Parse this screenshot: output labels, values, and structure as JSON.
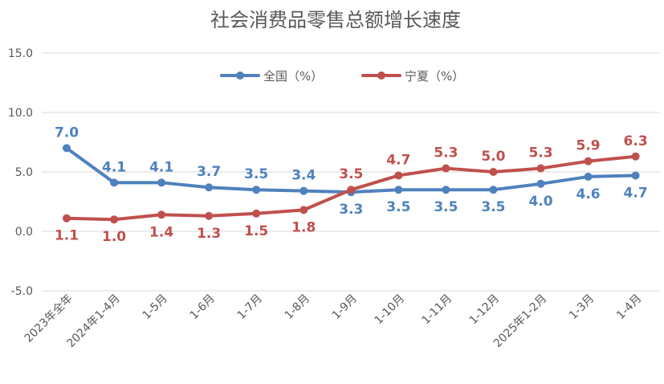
{
  "chart_data": {
    "type": "line",
    "title": "社会消费品零售总额增长速度",
    "xlabel": "",
    "ylabel": "",
    "ylim": [
      -5.0,
      15.0
    ],
    "yticks": [
      "15.0",
      "10.0",
      "5.0",
      "0.0",
      "-5.0"
    ],
    "grid": true,
    "legend_position": "top-center",
    "categories": [
      "2023年全年",
      "2024年1-4月",
      "1-5月",
      "1-6月",
      "1-7月",
      "1-8月",
      "1-9月",
      "1-10月",
      "1-11月",
      "1-12月",
      "2025年1-2月",
      "1-3月",
      "1-4月"
    ],
    "series": [
      {
        "name": "全国（%）",
        "color": "#4f81bd",
        "values": [
          7.0,
          4.1,
          4.1,
          3.7,
          3.5,
          3.4,
          3.3,
          3.5,
          3.5,
          3.5,
          4.0,
          4.6,
          4.7
        ],
        "labels": [
          "7.0",
          "4.1",
          "4.1",
          "3.7",
          "3.5",
          "3.4",
          "3.3",
          "3.5",
          "3.5",
          "3.5",
          "4.0",
          "4.6",
          "4.7"
        ]
      },
      {
        "name": "宁夏（%）",
        "color": "#c0504d",
        "values": [
          1.1,
          1.0,
          1.4,
          1.3,
          1.5,
          1.8,
          3.5,
          4.7,
          5.3,
          5.0,
          5.3,
          5.9,
          6.3
        ],
        "labels": [
          "1.1",
          "1.0",
          "1.4",
          "1.3",
          "1.5",
          "1.8",
          "3.5",
          "4.7",
          "5.3",
          "5.0",
          "5.3",
          "5.9",
          "6.3"
        ]
      }
    ]
  }
}
